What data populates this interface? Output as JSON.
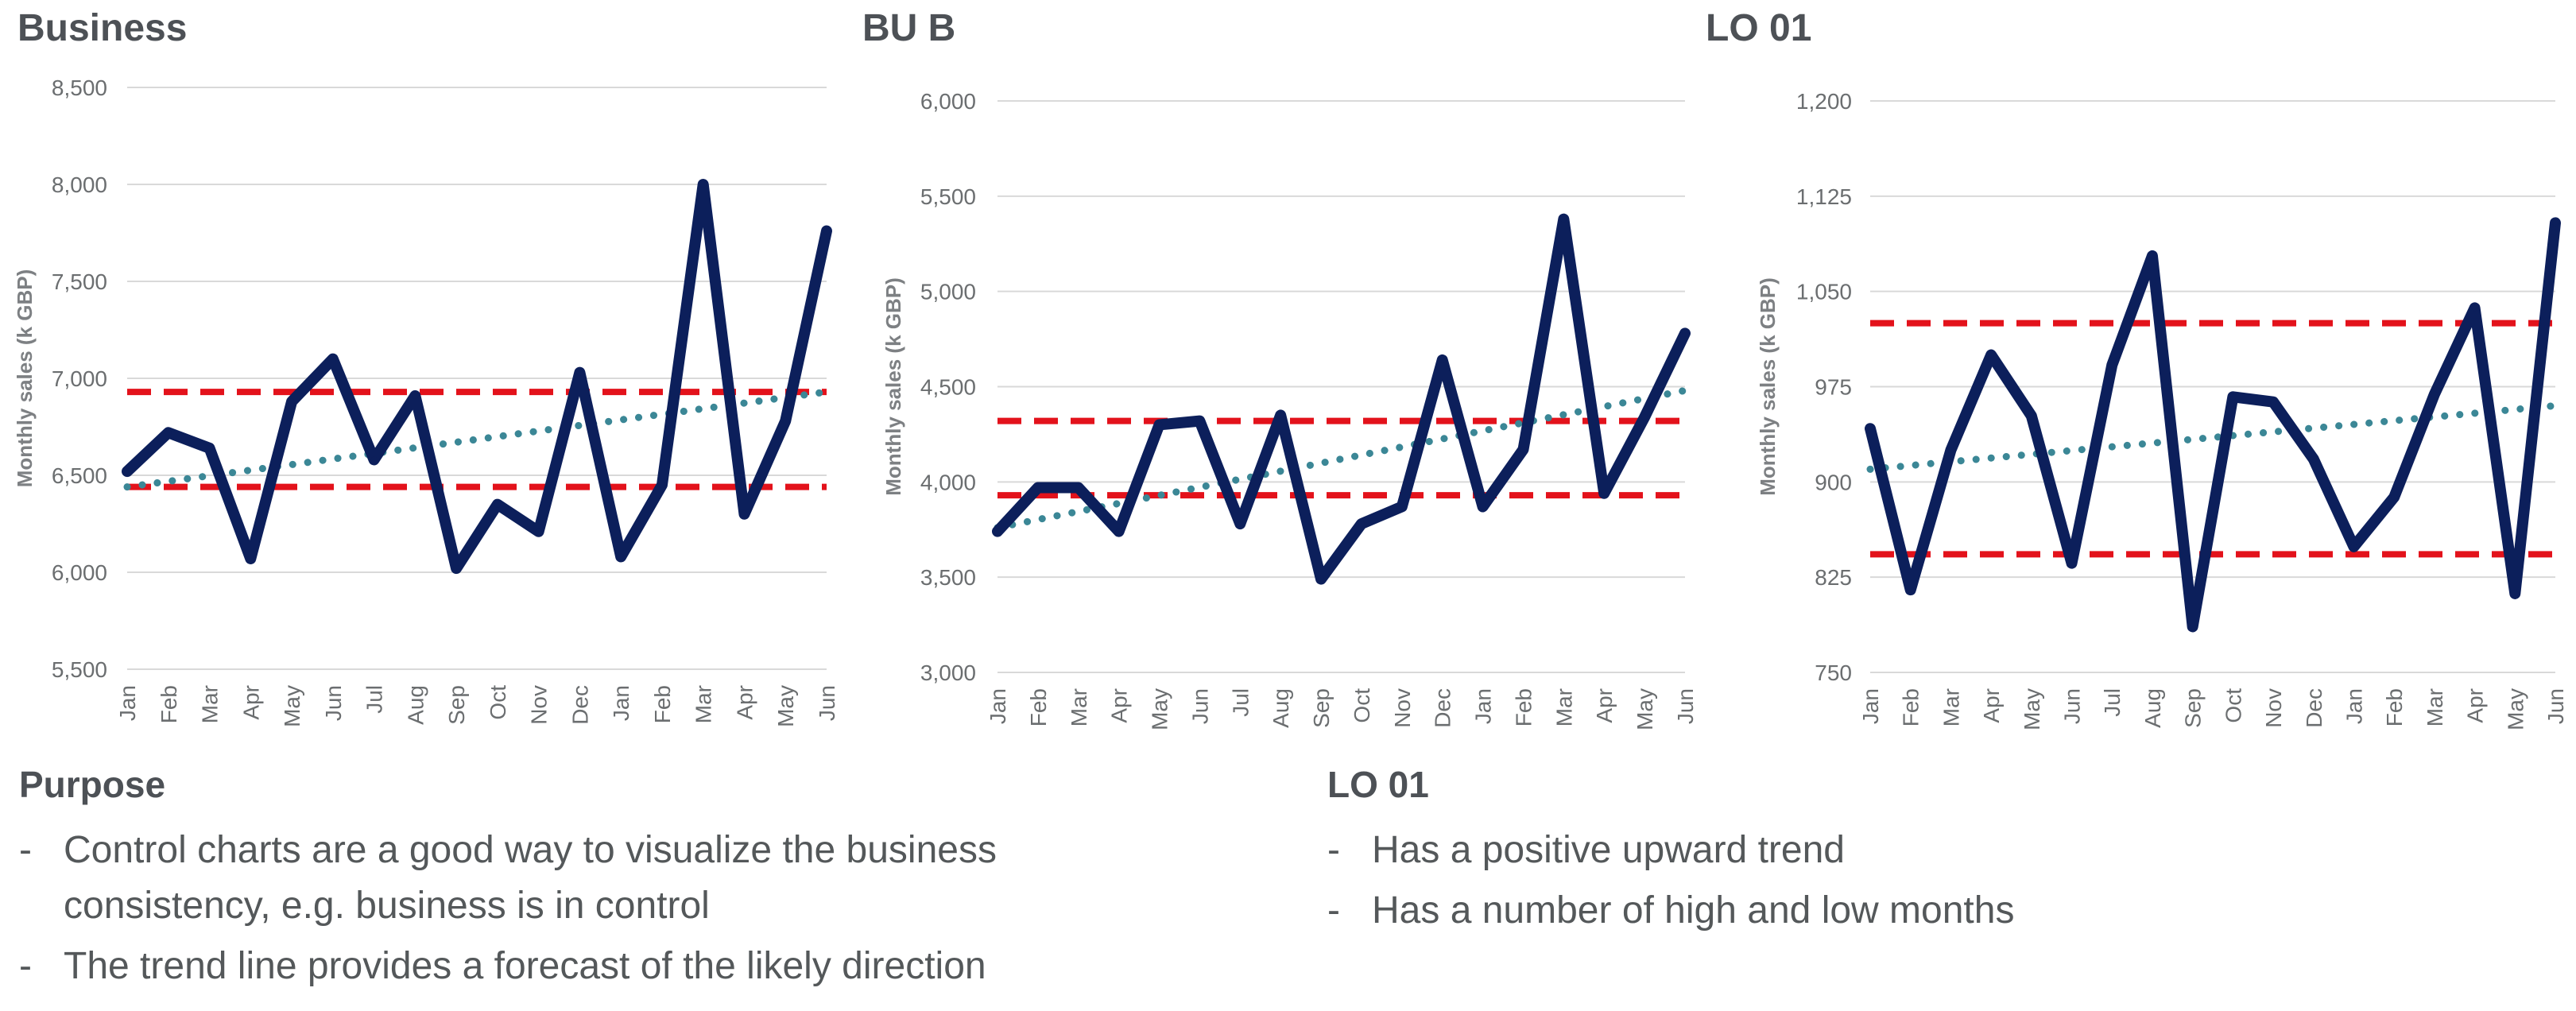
{
  "chart_data": [
    {
      "type": "line",
      "title": "Business",
      "ylabel": "Monthly sales (k GBP)",
      "xlabel": "",
      "ylim": [
        5500,
        8500
      ],
      "yticks": [
        5500,
        6000,
        6500,
        7000,
        7500,
        8000,
        8500
      ],
      "ytick_labels": [
        "5,500",
        "6,000",
        "6,500",
        "7,000",
        "7,500",
        "8,000",
        "8,500"
      ],
      "categories": [
        "Jan",
        "Feb",
        "Mar",
        "Apr",
        "May",
        "Jun",
        "Jul",
        "Aug",
        "Sep",
        "Oct",
        "Nov",
        "Dec",
        "Jan",
        "Feb",
        "Mar",
        "Apr",
        "May",
        "Jun"
      ],
      "values": [
        6520,
        6720,
        6640,
        6070,
        6880,
        7100,
        6580,
        6910,
        6020,
        6350,
        6210,
        7030,
        6080,
        6450,
        8000,
        6300,
        6780,
        7760
      ],
      "trend": [
        6440,
        6930
      ],
      "control_limits": [
        6440,
        6930
      ],
      "colors": {
        "series": "#0c1f5b",
        "trend": "#3b8796",
        "limits": "#e3121b"
      }
    },
    {
      "type": "line",
      "title": "BU B",
      "ylabel": "Monthly sales (k GBP)",
      "xlabel": "",
      "ylim": [
        3000,
        6000
      ],
      "yticks": [
        3000,
        3500,
        4000,
        4500,
        5000,
        5500,
        6000
      ],
      "ytick_labels": [
        "3,000",
        "3,500",
        "4,000",
        "4,500",
        "5,000",
        "5,500",
        "6,000"
      ],
      "categories": [
        "Jan",
        "Feb",
        "Mar",
        "Apr",
        "May",
        "Jun",
        "Jul",
        "Aug",
        "Sep",
        "Oct",
        "Nov",
        "Dec",
        "Jan",
        "Feb",
        "Mar",
        "Apr",
        "May",
        "Jun"
      ],
      "values": [
        3740,
        3970,
        3970,
        3740,
        4300,
        4320,
        3780,
        4350,
        3490,
        3780,
        3870,
        4640,
        3870,
        4170,
        5380,
        3940,
        4340,
        4780
      ],
      "trend": [
        3760,
        4480
      ],
      "control_limits": [
        3930,
        4320
      ],
      "colors": {
        "series": "#0c1f5b",
        "trend": "#3b8796",
        "limits": "#e3121b"
      }
    },
    {
      "type": "line",
      "title": "LO 01",
      "ylabel": "Monthly sales (k GBP)",
      "xlabel": "",
      "ylim": [
        750,
        1200
      ],
      "yticks": [
        750,
        825,
        900,
        975,
        1050,
        1125,
        1200
      ],
      "ytick_labels": [
        "750",
        "825",
        "900",
        "975",
        "1,050",
        "1,125",
        "1,200"
      ],
      "categories": [
        "Jan",
        "Feb",
        "Mar",
        "Apr",
        "May",
        "Jun",
        "Jul",
        "Aug",
        "Sep",
        "Oct",
        "Nov",
        "Dec",
        "Jan",
        "Feb",
        "Mar",
        "Apr",
        "May",
        "Jun"
      ],
      "values": [
        942,
        815,
        925,
        1000,
        952,
        836,
        992,
        1078,
        786,
        967,
        963,
        918,
        849,
        888,
        969,
        1037,
        812,
        1104
      ],
      "trend": [
        910,
        960
      ],
      "control_limits": [
        843,
        1025
      ],
      "colors": {
        "series": "#0c1f5b",
        "trend": "#3b8796",
        "limits": "#e3121b"
      }
    }
  ],
  "purpose": {
    "title": "Purpose",
    "bullets": [
      "Control charts are a good way to visualize the business consistency, e.g. business is in control",
      "The trend line provides a forecast of the likely direction"
    ]
  },
  "lo01": {
    "title": "LO 01",
    "bullets": [
      "Has a positive upward trend",
      "Has a number of high and low months"
    ]
  }
}
